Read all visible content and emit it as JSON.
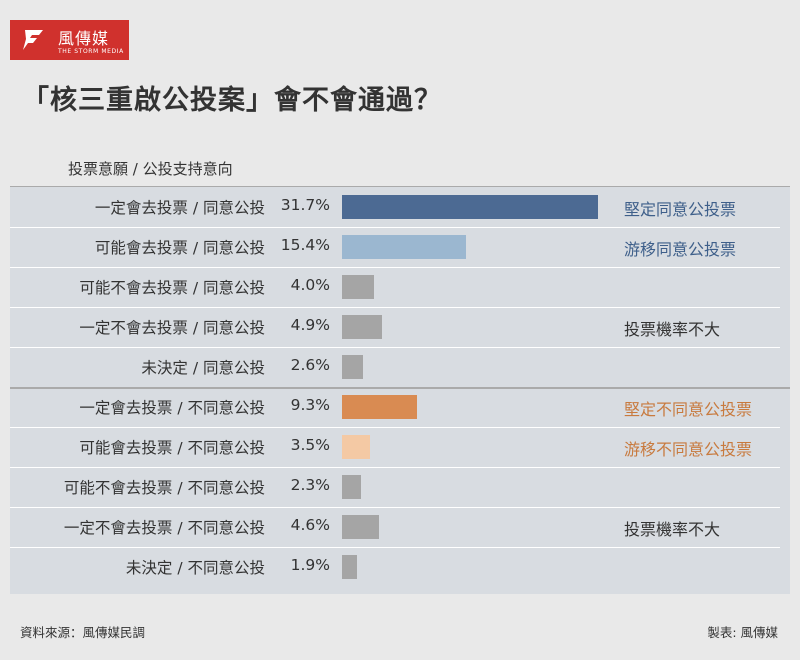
{
  "logo": {
    "name": "風傳媒",
    "subtitle": "THE STORM MEDIA"
  },
  "title": "「核三重啟公投案」會不會通過？",
  "colors": {
    "firm_yes": "#4c6a93",
    "swing_yes": "#9bb7d0",
    "unlikely": "#a5a5a5",
    "firm_no": "#d98b52",
    "swing_no": "#f4c9a4",
    "annot_blue": "#3e5f8a",
    "annot_orange": "#c87a3e",
    "brand": "#d0312d"
  },
  "chart_data": {
    "type": "bar",
    "orientation": "horizontal",
    "title": "「核三重啟公投案」會不會通過？",
    "column_header": "投票意願 / 公投支持意向",
    "unit": "%",
    "categories": [
      "一定會去投票 / 同意公投",
      "可能會去投票 / 同意公投",
      "可能不會去投票 / 同意公投",
      "一定不會去投票 / 同意公投",
      "未決定 / 同意公投",
      "一定會去投票 / 不同意公投",
      "可能會去投票 / 不同意公投",
      "可能不會去投票 / 不同意公投",
      "一定不會去投票 / 不同意公投",
      "未決定 / 不同意公投"
    ],
    "values": [
      31.7,
      15.4,
      4.0,
      4.9,
      2.6,
      9.3,
      3.5,
      2.3,
      4.6,
      1.9
    ],
    "value_labels": [
      "31.7%",
      "15.4%",
      "4.0%",
      "4.9%",
      "2.6%",
      "9.3%",
      "3.5%",
      "2.3%",
      "4.6%",
      "1.9%"
    ],
    "bar_colors": [
      "firm_yes",
      "swing_yes",
      "unlikely",
      "unlikely",
      "unlikely",
      "firm_no",
      "swing_no",
      "unlikely",
      "unlikely",
      "unlikely"
    ],
    "annotations": [
      {
        "text": "堅定同意公投票",
        "row": 0,
        "color": "annot_blue"
      },
      {
        "text": "游移同意公投票",
        "row": 1,
        "color": "annot_blue"
      },
      {
        "text": "投票機率不大",
        "row": 3,
        "color": "text"
      },
      {
        "text": "堅定不同意公投票",
        "row": 5,
        "color": "annot_orange"
      },
      {
        "text": "游移不同意公投票",
        "row": 6,
        "color": "annot_orange"
      },
      {
        "text": "投票機率不大",
        "row": 8,
        "color": "text"
      }
    ],
    "xlim": [
      0,
      31.7
    ],
    "grid": false
  },
  "footer": {
    "source": "資料來源：風傳媒民調",
    "credit": "製表: 風傳媒"
  }
}
